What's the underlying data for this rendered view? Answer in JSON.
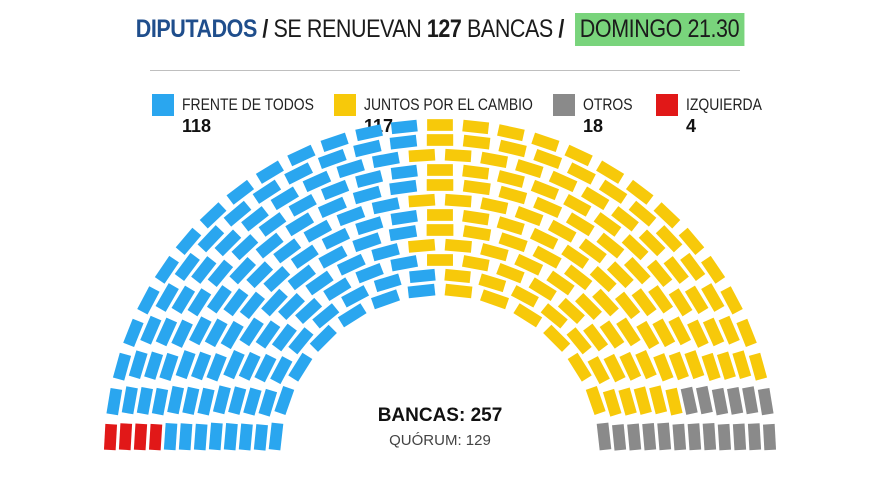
{
  "header": {
    "part1": "DIPUTADOS",
    "sep1": " / ",
    "part2": "SE RENUEVAN ",
    "part3": "127",
    "part4": " BANCAS",
    "sep2": " / ",
    "part5": "DOMINGO 21.30"
  },
  "colors": {
    "header_blue": "#1f4e8c",
    "header_highlight": "#79d47c"
  },
  "chart_data": {
    "type": "parliament",
    "total_label": "BANCAS: 257",
    "quorum_label": "QUÓRUM: 129",
    "total": 257,
    "quorum": 129,
    "series": [
      {
        "name": "FRENTE DE TODOS",
        "value": 118,
        "color": "#2aa6ef"
      },
      {
        "name": "JUNTOS POR EL CAMBIO",
        "value": 117,
        "color": "#f7c90a"
      },
      {
        "name": "OTROS",
        "value": 18,
        "color": "#8a8a8a"
      },
      {
        "name": "IZQUIERDA",
        "value": 4,
        "color": "#e11818"
      }
    ]
  }
}
